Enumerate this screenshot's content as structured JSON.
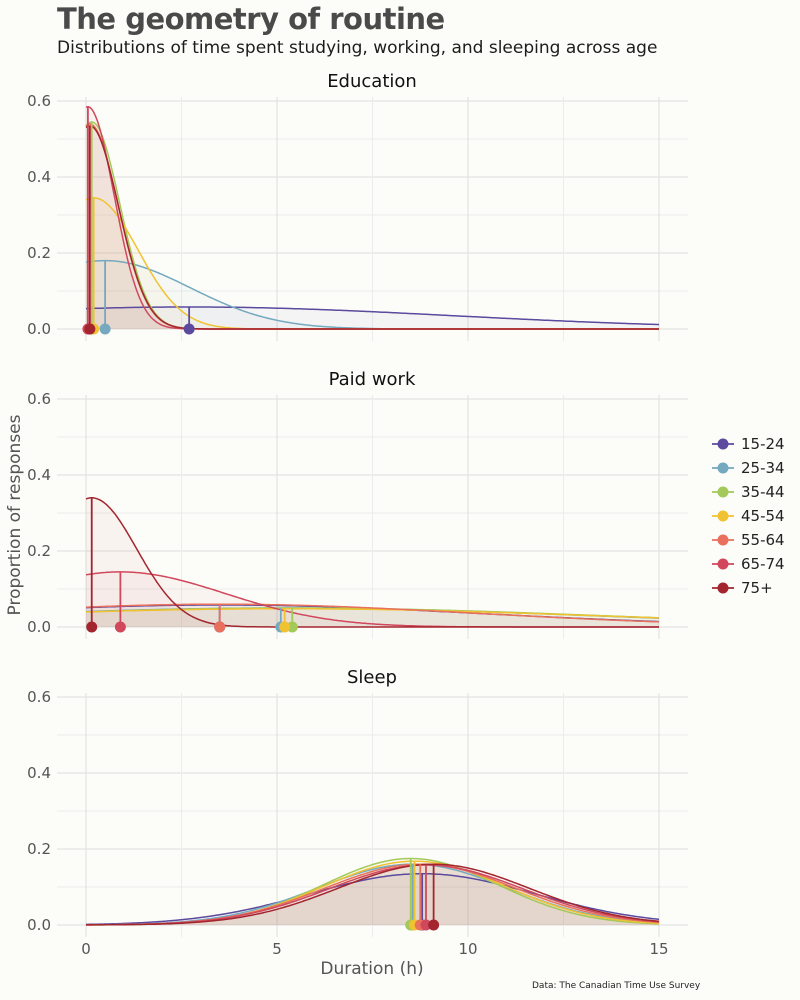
{
  "title": "The geometry of routine",
  "subtitle": "Distributions of time spent studying, working, and sleeping across age",
  "caption": "Data: The Canadian Time Use Survey",
  "chart_data": {
    "type": "line",
    "xlabel": "Duration (h)",
    "ylabel": "Proportion of responses",
    "xlim": [
      0,
      15
    ],
    "ylim": [
      0,
      0.6
    ],
    "x_ticks": [
      0,
      5,
      10,
      15
    ],
    "y_ticks": [
      0.0,
      0.2,
      0.4,
      0.6
    ],
    "y_tick_labels": [
      "0.0",
      "0.2",
      "0.4",
      "0.6"
    ],
    "grid": true,
    "legend_position": "right",
    "series_names": [
      "15-24",
      "25-34",
      "35-44",
      "45-54",
      "55-64",
      "65-74",
      "75+"
    ],
    "colors": {
      "15-24": "#5b4a9e",
      "25-34": "#74a9bf",
      "35-44": "#a3c95a",
      "45-54": "#f0c232",
      "55-64": "#e8705c",
      "65-74": "#d1485d",
      "75+": "#a3262f"
    },
    "panels": [
      {
        "title": "Education",
        "series": [
          {
            "name": "15-24",
            "mean": 2.7,
            "peak": 0.058
          },
          {
            "name": "25-34",
            "mean": 0.5,
            "peak": 0.18
          },
          {
            "name": "35-44",
            "mean": 0.15,
            "peak": 0.545
          },
          {
            "name": "45-54",
            "mean": 0.2,
            "peak": 0.345
          },
          {
            "name": "55-64",
            "mean": 0.1,
            "peak": 0.54
          },
          {
            "name": "65-74",
            "mean": 0.05,
            "peak": 0.585
          },
          {
            "name": "75+",
            "mean": 0.1,
            "peak": 0.535
          }
        ]
      },
      {
        "title": "Paid work",
        "series": [
          {
            "name": "15-24",
            "mean": 3.5,
            "peak": 0.058
          },
          {
            "name": "25-34",
            "mean": 5.1,
            "peak": 0.05
          },
          {
            "name": "35-44",
            "mean": 5.4,
            "peak": 0.05
          },
          {
            "name": "45-54",
            "mean": 5.2,
            "peak": 0.048
          },
          {
            "name": "55-64",
            "mean": 3.5,
            "peak": 0.06
          },
          {
            "name": "65-74",
            "mean": 0.9,
            "peak": 0.145
          },
          {
            "name": "75+",
            "mean": 0.15,
            "peak": 0.34
          }
        ]
      },
      {
        "title": "Sleep",
        "series": [
          {
            "name": "15-24",
            "mean": 8.8,
            "peak": 0.135
          },
          {
            "name": "25-34",
            "mean": 8.55,
            "peak": 0.16
          },
          {
            "name": "35-44",
            "mean": 8.5,
            "peak": 0.175
          },
          {
            "name": "45-54",
            "mean": 8.6,
            "peak": 0.168
          },
          {
            "name": "55-64",
            "mean": 8.75,
            "peak": 0.16
          },
          {
            "name": "65-74",
            "mean": 8.9,
            "peak": 0.158
          },
          {
            "name": "75+",
            "mean": 9.1,
            "peak": 0.16
          }
        ]
      }
    ]
  }
}
